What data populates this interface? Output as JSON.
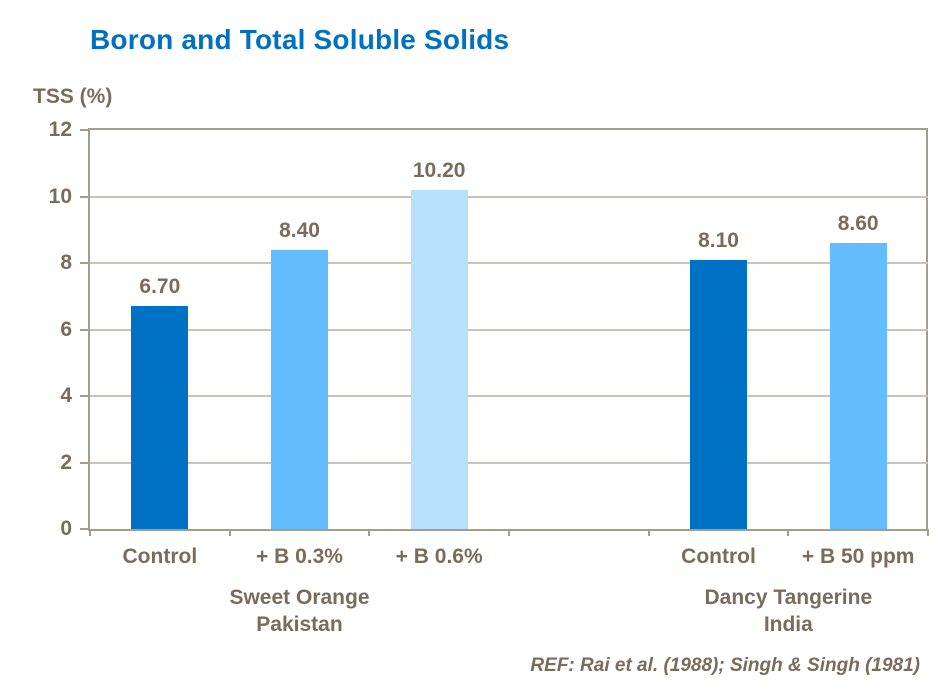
{
  "page": {
    "background": "#FFFFFF"
  },
  "chart_data": {
    "type": "bar",
    "title": "Boron and Total Soluble Solids",
    "ylabel": "TSS (%)",
    "xlabel": "",
    "ylim": [
      0,
      12
    ],
    "ytick_step": 2,
    "ytick_labels": [
      "0",
      "2",
      "4",
      "6",
      "8",
      "10",
      "12"
    ],
    "grid": true,
    "legend": false,
    "categories": [
      "Control",
      "+ B 0.3%",
      "+ B 0.6%",
      "",
      "Control",
      "+ B 50 ppm"
    ],
    "values": [
      6.7,
      8.4,
      10.2,
      null,
      8.1,
      8.6
    ],
    "value_labels": [
      "6.70",
      "8.40",
      "10.20",
      "",
      "8.10",
      "8.60"
    ],
    "bar_colors": [
      "#0072C6",
      "#63BCFD",
      "#B8DFFB",
      "",
      "#0072C6",
      "#63BCFD"
    ],
    "groups": [
      {
        "line1": "Sweet Orange",
        "line2": "Pakistan",
        "span": [
          0,
          3
        ]
      },
      {
        "line1": "Dancy Tangerine",
        "line2": "India",
        "span": [
          4,
          6
        ]
      }
    ],
    "reference": "REF: Rai et al. (1988); Singh & Singh (1981)"
  },
  "colors": {
    "title_blue": "#0070C0",
    "text_brown": "#7A6C5B",
    "axis_line": "#A69C8E",
    "gridline": "#C9C3B9",
    "bar_dark_blue": "#0072C6",
    "bar_medium_blue": "#63BCFD",
    "bar_light_blue": "#B8DFFB"
  }
}
